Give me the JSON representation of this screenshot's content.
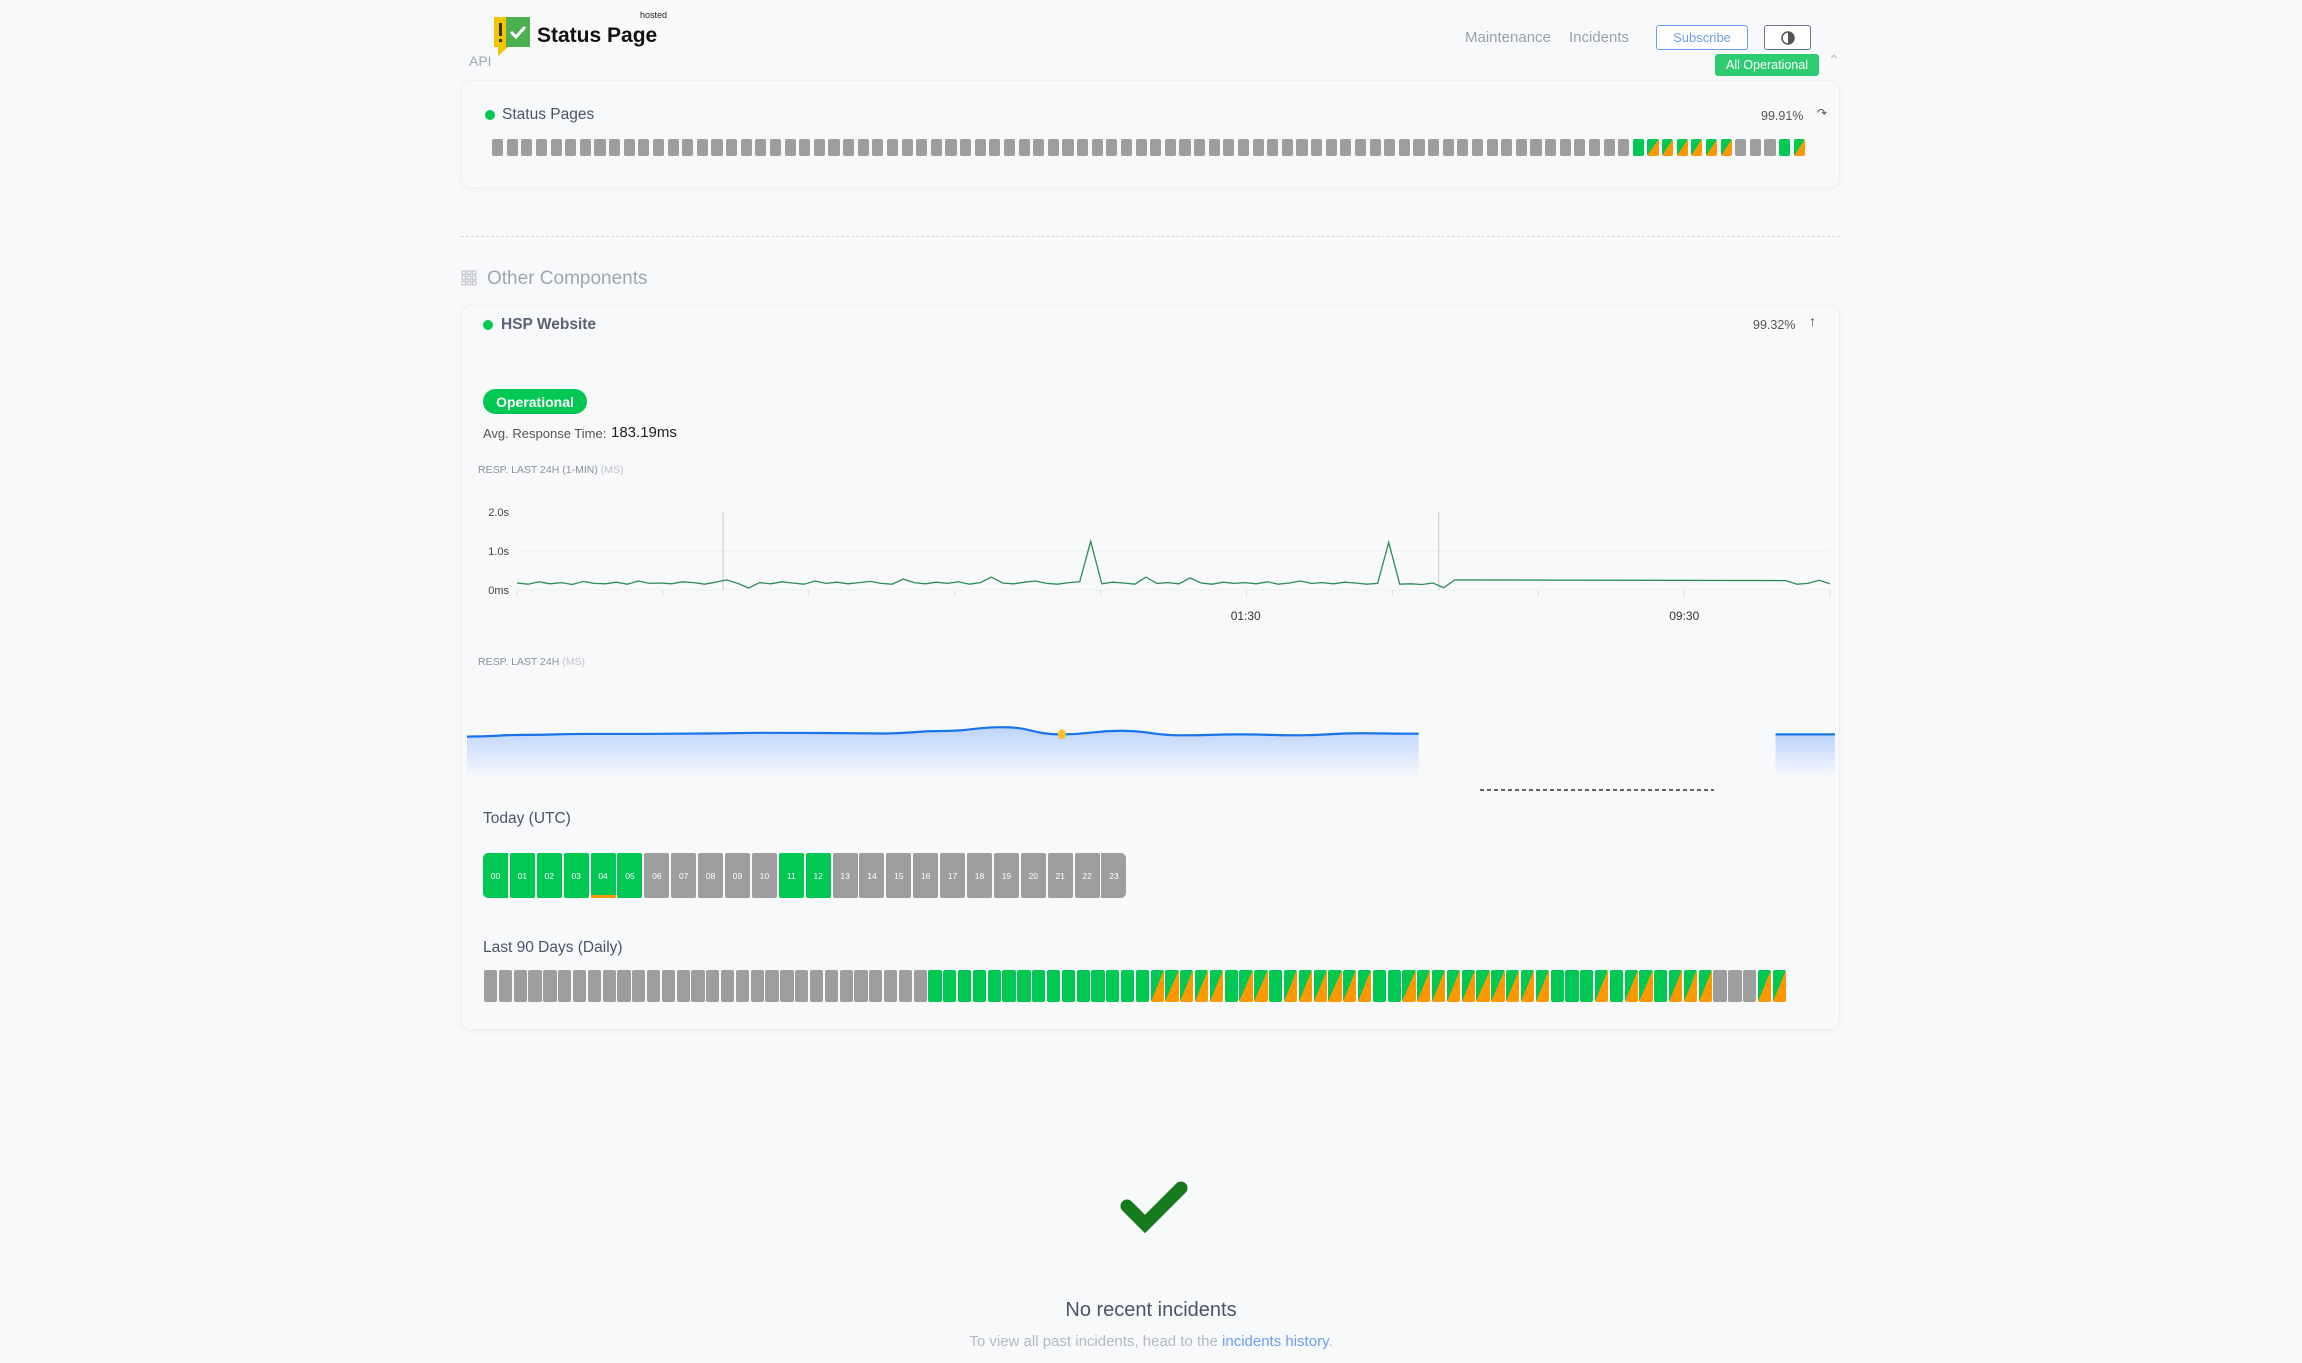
{
  "header": {
    "brand": "Status Page",
    "brand_tag": "hosted",
    "api_label": "API",
    "nav": [
      "Maintenance",
      "Incidents"
    ],
    "subscribe_label": "Subscribe",
    "theme_icon": "half-circle-icon",
    "overall_status": "All Operational"
  },
  "colors": {
    "operational": "#00c853",
    "partial": "#ff9800",
    "no_data": "#9e9e9e",
    "accent": "#6d9ef0",
    "check": "#157a1c"
  },
  "status_pages": {
    "name": "Status Pages",
    "uptime": "99.91%",
    "days": "xxxxxxxxxxxxxxxxxxxxxxxxxxxxxxxxxxxxxxxxxxxxxxxxxxxxxxxxxxxxxxxxxxxxxxxxxxxxxxgppppppxxxgp"
  },
  "other_section": {
    "title": "Other Components"
  },
  "hsp": {
    "name": "HSP Website",
    "uptime": "99.32%",
    "status": "Operational",
    "avg_label": "Avg. Response Time:",
    "avg_value": "183.19ms",
    "chart1_title": "RESP. LAST 24H (1-MIN)",
    "chart1_unit": "(MS)",
    "chart2_title": "RESP. LAST 24H",
    "chart2_unit": "(MS)",
    "today_title": "Today (UTC)",
    "hours": [
      {
        "label": "00",
        "s": "g"
      },
      {
        "label": "01",
        "s": "g"
      },
      {
        "label": "02",
        "s": "g"
      },
      {
        "label": "03",
        "s": "g"
      },
      {
        "label": "04",
        "s": "g",
        "warn": true
      },
      {
        "label": "05",
        "s": "g"
      },
      {
        "label": "06",
        "s": "x"
      },
      {
        "label": "07",
        "s": "x"
      },
      {
        "label": "08",
        "s": "x"
      },
      {
        "label": "09",
        "s": "x"
      },
      {
        "label": "10",
        "s": "x"
      },
      {
        "label": "11",
        "s": "g"
      },
      {
        "label": "12",
        "s": "g"
      },
      {
        "label": "13",
        "s": "x"
      },
      {
        "label": "14",
        "s": "x"
      },
      {
        "label": "15",
        "s": "x"
      },
      {
        "label": "16",
        "s": "x"
      },
      {
        "label": "17",
        "s": "x"
      },
      {
        "label": "18",
        "s": "x"
      },
      {
        "label": "19",
        "s": "x"
      },
      {
        "label": "20",
        "s": "x"
      },
      {
        "label": "21",
        "s": "x"
      },
      {
        "label": "22",
        "s": "x"
      },
      {
        "label": "23",
        "s": "x"
      }
    ],
    "days_title": "Last 90 Days (Daily)",
    "days": "xxxxxxxxxxxxxxxxxxxxxxxxxxxxxxgggggggggggggggpppppgppgppppppggppppppppppgggpgppgpppxxxpp"
  },
  "chart_data": [
    {
      "type": "line",
      "title": "RESP. LAST 24H (1-MIN) (MS)",
      "y_ticks": [
        "0ms",
        "1.0s",
        "2.0s"
      ],
      "ylim": [
        0,
        2000
      ],
      "x_ticks": [
        {
          "label": "01:30",
          "at": 0.555
        },
        {
          "label": "09:30",
          "at": 0.889
        }
      ],
      "grid": true,
      "values": [
        180,
        150,
        210,
        160,
        190,
        140,
        220,
        170,
        160,
        200,
        150,
        230,
        170,
        180,
        160,
        210,
        190,
        150,
        200,
        260,
        170,
        50,
        190,
        160,
        210,
        180,
        150,
        230,
        170,
        200,
        160,
        190,
        220,
        170,
        150,
        280,
        190,
        160,
        200,
        170,
        210,
        150,
        190,
        330,
        180,
        160,
        200,
        230,
        170,
        150,
        190,
        210,
        1250,
        160,
        200,
        180,
        150,
        330,
        170,
        190,
        160,
        310,
        180,
        150,
        200,
        170,
        190,
        160,
        210,
        150,
        180,
        230,
        170,
        190,
        160,
        200,
        180,
        150,
        170,
        1220,
        150,
        160,
        140,
        180,
        60,
        260,
        null,
        null,
        null,
        null,
        null,
        null,
        null,
        null,
        null,
        null,
        null,
        null,
        null,
        null,
        null,
        null,
        null,
        null,
        null,
        null,
        null,
        null,
        null,
        null,
        null,
        null,
        null,
        null,
        null,
        240,
        150,
        170,
        250,
        160
      ]
    },
    {
      "type": "area",
      "title": "RESP. LAST 24H (MS)",
      "ylim": [
        0,
        400
      ],
      "values": [
        170,
        178,
        182,
        182,
        184,
        187,
        186,
        184,
        195,
        212,
        180,
        196,
        176,
        180,
        176,
        185,
        183,
        null,
        null,
        null,
        null,
        null,
        180,
        180
      ],
      "highlight_index": 10
    }
  ],
  "incidents": {
    "title": "No recent incidents",
    "sub_prefix": "To view all past incidents, head to the ",
    "link": "incidents history",
    "sub_suffix": "."
  }
}
